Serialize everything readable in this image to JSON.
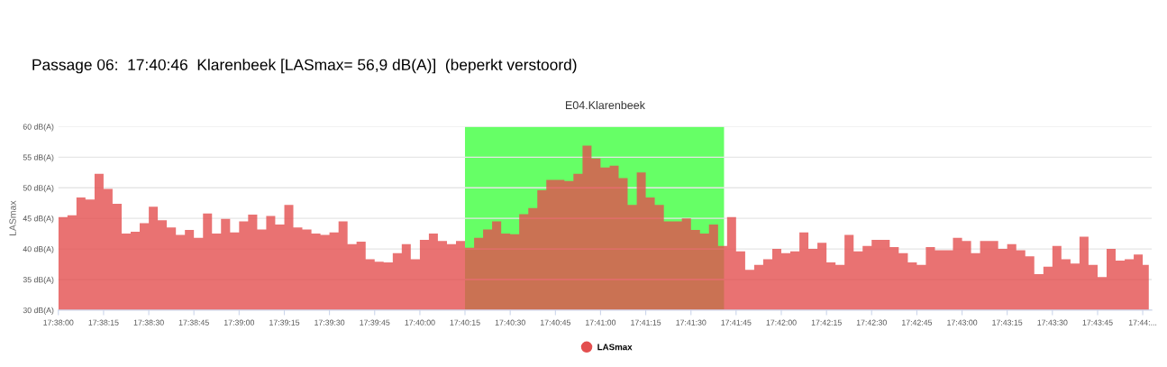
{
  "chart_data": {
    "type": "area",
    "title": "Passage 06:  17:40:46  Klarenbeek [LASmax= 56,9 dB(A)]  (beperkt verstoord)",
    "subtitle": "E04.Klarenbeek",
    "ylabel": "LASmax",
    "x": [
      17.63333,
      17.63417,
      17.635,
      17.63583,
      17.63667,
      17.6375,
      17.63833,
      17.63917,
      17.64,
      17.64083,
      17.64167,
      17.6425,
      17.64333,
      17.64417,
      17.645,
      17.64583,
      17.64667,
      17.6475,
      17.64833,
      17.64917,
      17.65,
      17.65083,
      17.65167,
      17.6525,
      17.65333,
      17.65417,
      17.655,
      17.65583,
      17.65667,
      17.6575,
      17.65833,
      17.65917,
      17.66,
      17.66083,
      17.66167,
      17.6625,
      17.66333,
      17.66417,
      17.665,
      17.66583,
      17.66667,
      17.6675,
      17.66833,
      17.66917,
      17.67,
      17.67083,
      17.67167,
      17.6725,
      17.67333,
      17.67417,
      17.675,
      17.67583,
      17.67667,
      17.6775,
      17.67833,
      17.67917,
      17.68,
      17.68083,
      17.68167,
      17.6825,
      17.68333,
      17.68417,
      17.685,
      17.68583,
      17.68667,
      17.6875,
      17.68833,
      17.68917,
      17.69,
      17.69083,
      17.69167,
      17.6925,
      17.69333,
      17.69417,
      17.695,
      17.69583,
      17.69667,
      17.6975,
      17.69833,
      17.69917,
      17.7,
      17.70083,
      17.70167,
      17.7025,
      17.70333,
      17.70417,
      17.705,
      17.70583,
      17.70667,
      17.7075,
      17.70833,
      17.70917,
      17.71,
      17.71083,
      17.71167,
      17.7125,
      17.71333,
      17.71417,
      17.715,
      17.71583,
      17.71667,
      17.7175,
      17.71833,
      17.71917,
      17.72,
      17.72083,
      17.72167,
      17.7225,
      17.72333,
      17.72417,
      17.725,
      17.72583,
      17.72667,
      17.7275,
      17.72833,
      17.72917,
      17.73,
      17.73083,
      17.73167,
      17.7325,
      17.73333,
      17.73389
    ],
    "series": [
      {
        "name": "LASmax",
        "color": "#e34f4f",
        "values": [
          45.2,
          45.5,
          48.4,
          48.1,
          52.3,
          49.8,
          47.4,
          42.5,
          42.8,
          44.2,
          46.9,
          44.7,
          43.5,
          42.3,
          43.1,
          41.8,
          45.8,
          42.5,
          44.9,
          42.7,
          44.5,
          45.6,
          43.2,
          45.4,
          44.0,
          47.2,
          43.5,
          43.2,
          42.5,
          42.3,
          42.7,
          44.5,
          40.8,
          41.2,
          38.3,
          37.9,
          37.8,
          39.3,
          40.8,
          38.3,
          41.5,
          42.5,
          41.3,
          40.8,
          41.3,
          40.2,
          41.8,
          43.2,
          44.5,
          42.5,
          42.4,
          45.7,
          46.7,
          49.6,
          51.3,
          51.3,
          51.1,
          52.3,
          56.9,
          54.8,
          53.3,
          53.6,
          51.6,
          47.2,
          52.5,
          48.4,
          47.2,
          44.5,
          44.5,
          45.0,
          43.1,
          42.5,
          44.0,
          40.5,
          45.2,
          39.6,
          36.6,
          37.4,
          38.3,
          40.0,
          39.3,
          39.6,
          42.7,
          40.0,
          41.0,
          37.8,
          37.4,
          42.3,
          39.6,
          40.5,
          41.5,
          41.5,
          40.3,
          39.3,
          37.8,
          37.4,
          40.3,
          39.8,
          39.8,
          41.8,
          41.3,
          39.3,
          41.3,
          41.3,
          40.0,
          40.8,
          39.8,
          38.8,
          35.9,
          37.1,
          40.5,
          38.3,
          37.6,
          42.0,
          37.4,
          35.4,
          40.0,
          38.1,
          38.3,
          39.1,
          37.4,
          38.3
        ]
      }
    ],
    "xlim": [
      17.63333,
      17.73417
    ],
    "xticks": [
      {
        "value": 17.63333,
        "label": "17:38:00"
      },
      {
        "value": 17.6375,
        "label": "17:38:15"
      },
      {
        "value": 17.64167,
        "label": "17:38:30"
      },
      {
        "value": 17.64583,
        "label": "17:38:45"
      },
      {
        "value": 17.65,
        "label": "17:39:00"
      },
      {
        "value": 17.65417,
        "label": "17:39:15"
      },
      {
        "value": 17.65833,
        "label": "17:39:30"
      },
      {
        "value": 17.6625,
        "label": "17:39:45"
      },
      {
        "value": 17.66667,
        "label": "17:40:00"
      },
      {
        "value": 17.67083,
        "label": "17:40:15"
      },
      {
        "value": 17.675,
        "label": "17:40:30"
      },
      {
        "value": 17.67917,
        "label": "17:40:45"
      },
      {
        "value": 17.68333,
        "label": "17:41:00"
      },
      {
        "value": 17.6875,
        "label": "17:41:15"
      },
      {
        "value": 17.69167,
        "label": "17:41:30"
      },
      {
        "value": 17.69583,
        "label": "17:41:45"
      },
      {
        "value": 17.7,
        "label": "17:42:00"
      },
      {
        "value": 17.70417,
        "label": "17:42:15"
      },
      {
        "value": 17.70833,
        "label": "17:42:30"
      },
      {
        "value": 17.7125,
        "label": "17:42:45"
      },
      {
        "value": 17.71667,
        "label": "17:43:00"
      },
      {
        "value": 17.72083,
        "label": "17:43:15"
      },
      {
        "value": 17.725,
        "label": "17:43:30"
      },
      {
        "value": 17.72917,
        "label": "17:43:45"
      },
      {
        "value": 17.73333,
        "label": "17:44:..."
      }
    ],
    "ylim": [
      30,
      60
    ],
    "yticks": [
      {
        "value": 30,
        "label": "30 dB(A)"
      },
      {
        "value": 35,
        "label": "35 dB(A)"
      },
      {
        "value": 40,
        "label": "40 dB(A)"
      },
      {
        "value": 45,
        "label": "45 dB(A)"
      },
      {
        "value": 50,
        "label": "50 dB(A)"
      },
      {
        "value": 55,
        "label": "55 dB(A)"
      },
      {
        "value": 60,
        "label": "60 dB(A)"
      }
    ],
    "bands": [
      {
        "axis": "x",
        "from": 17.67083,
        "to": 17.69472,
        "color": "#66ff66"
      }
    ],
    "grid": "y",
    "legend": "bottom"
  }
}
